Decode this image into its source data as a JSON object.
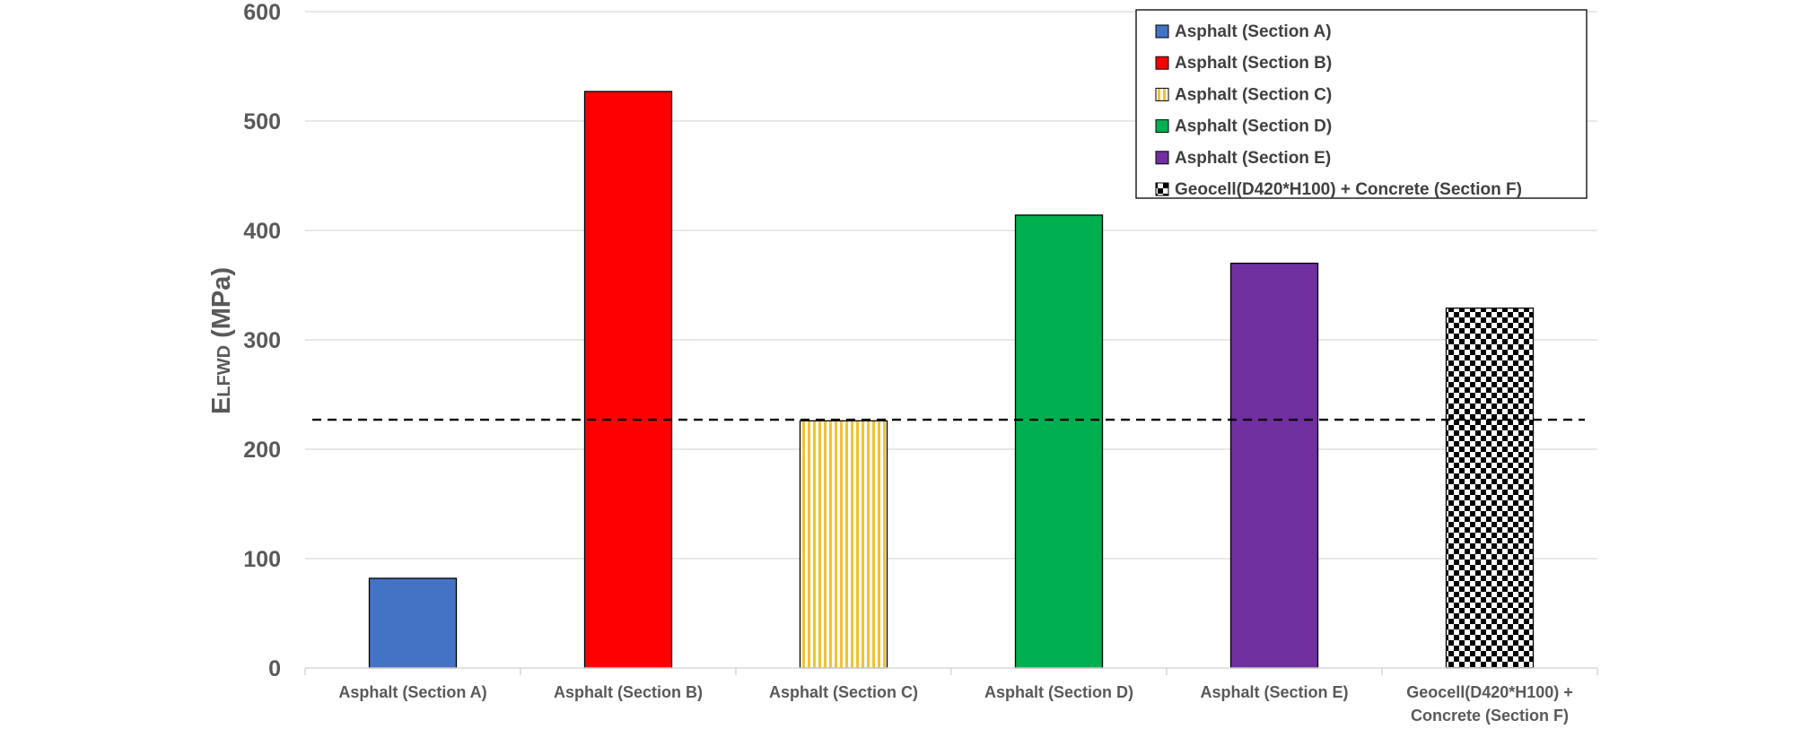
{
  "chart_data": {
    "type": "bar",
    "ylabel_main": "E",
    "ylabel_sub": "LFWD",
    "ylabel_unit": " (MPa)",
    "ylim": [
      0,
      600
    ],
    "yticks": [
      0,
      100,
      200,
      300,
      400,
      500,
      600
    ],
    "grid": true,
    "legend_position": "top-right",
    "categories": [
      "Asphalt (Section A)",
      "Asphalt (Section B)",
      "Asphalt (Section C)",
      "Asphalt (Section D)",
      "Asphalt (Section E)",
      "Geocell(D420*H100) + Concrete (Section F)"
    ],
    "tick_lines": [
      [
        "Asphalt (Section A)"
      ],
      [
        "Asphalt (Section B)"
      ],
      [
        "Asphalt (Section C)"
      ],
      [
        "Asphalt (Section D)"
      ],
      [
        "Asphalt (Section E)"
      ],
      [
        "Geocell(D420*H100) +",
        "Concrete (Section F)"
      ]
    ],
    "values": [
      82,
      527,
      226,
      414,
      370,
      329
    ],
    "legend": [
      "Asphalt (Section A)",
      "Asphalt (Section B)",
      "Asphalt (Section C)",
      "Asphalt (Section D)",
      "Asphalt (Section E)",
      "Geocell(D420*H100) + Concrete (Section F)"
    ],
    "colors": [
      "#4472C4",
      "#FF0000",
      "#FFD966",
      "#00B050",
      "#7030A0",
      "#000000"
    ],
    "patterns": [
      "solid",
      "solid",
      "vertical-stripes",
      "solid",
      "solid",
      "checkerboard"
    ],
    "reference_line": {
      "value": 227,
      "style": "dashed",
      "color": "#000000"
    }
  }
}
